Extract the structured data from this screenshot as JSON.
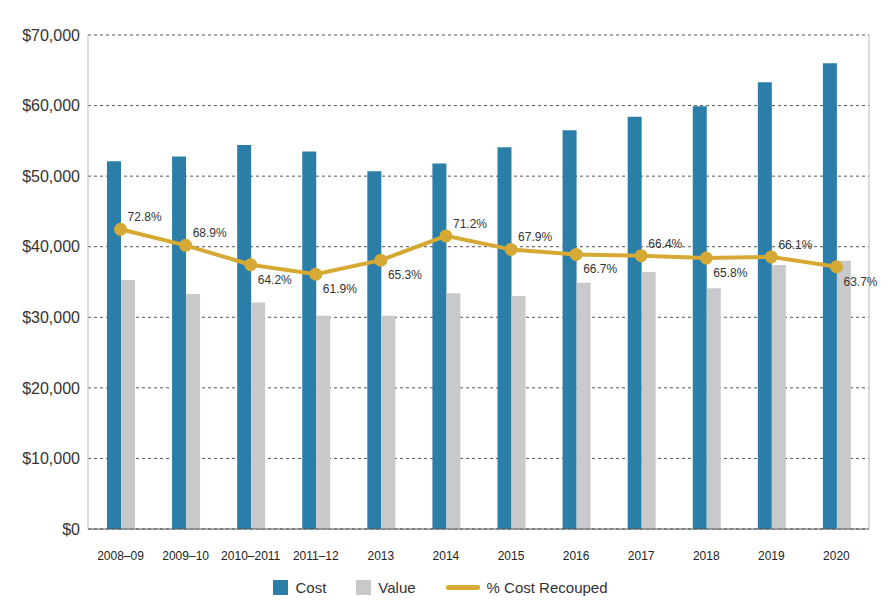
{
  "chart_data": {
    "type": "bar",
    "categories": [
      "2008–09",
      "2009–10",
      "2010–2011",
      "2011–12",
      "2013",
      "2014",
      "2015",
      "2016",
      "2017",
      "2018",
      "2019",
      "2020"
    ],
    "series": [
      {
        "name": "Cost",
        "type": "bar",
        "color": "#2b7ea8",
        "values": [
          52100,
          52800,
          54400,
          53500,
          50700,
          51800,
          54100,
          56500,
          58400,
          59900,
          63300,
          66000
        ]
      },
      {
        "name": "Value",
        "type": "bar",
        "color": "#c8c9ca",
        "values": [
          35300,
          33300,
          32100,
          30200,
          30200,
          33400,
          33000,
          34900,
          36400,
          34100,
          37400,
          38000
        ]
      },
      {
        "name": "% Cost Recouped",
        "type": "line",
        "axis": "y2",
        "color": "#d6a935",
        "marker": "circle",
        "data_labels": true,
        "values": [
          72.8,
          68.9,
          64.2,
          61.9,
          65.3,
          71.2,
          67.9,
          66.7,
          66.4,
          65.8,
          66.1,
          63.7
        ],
        "value_labels": [
          "72.8%",
          "68.9%",
          "64.2%",
          "61.9%",
          "65.3%",
          "71.2%",
          "67.9%",
          "66.7%",
          "66.4%",
          "65.8%",
          "66.1%",
          "63.7%"
        ]
      }
    ],
    "ylim": [
      0,
      70000
    ],
    "yticks": [
      {
        "value": 0,
        "label": "$0"
      },
      {
        "value": 10000,
        "label": "$10,000"
      },
      {
        "value": 20000,
        "label": "$20,000"
      },
      {
        "value": 30000,
        "label": "$30,000"
      },
      {
        "value": 40000,
        "label": "$40,000"
      },
      {
        "value": 50000,
        "label": "$50,000"
      },
      {
        "value": 60000,
        "label": "$60,000"
      },
      {
        "value": 70000,
        "label": "$70,000"
      }
    ],
    "y2lim": [
      0,
      120
    ],
    "grid": true,
    "legend": "bottom"
  }
}
